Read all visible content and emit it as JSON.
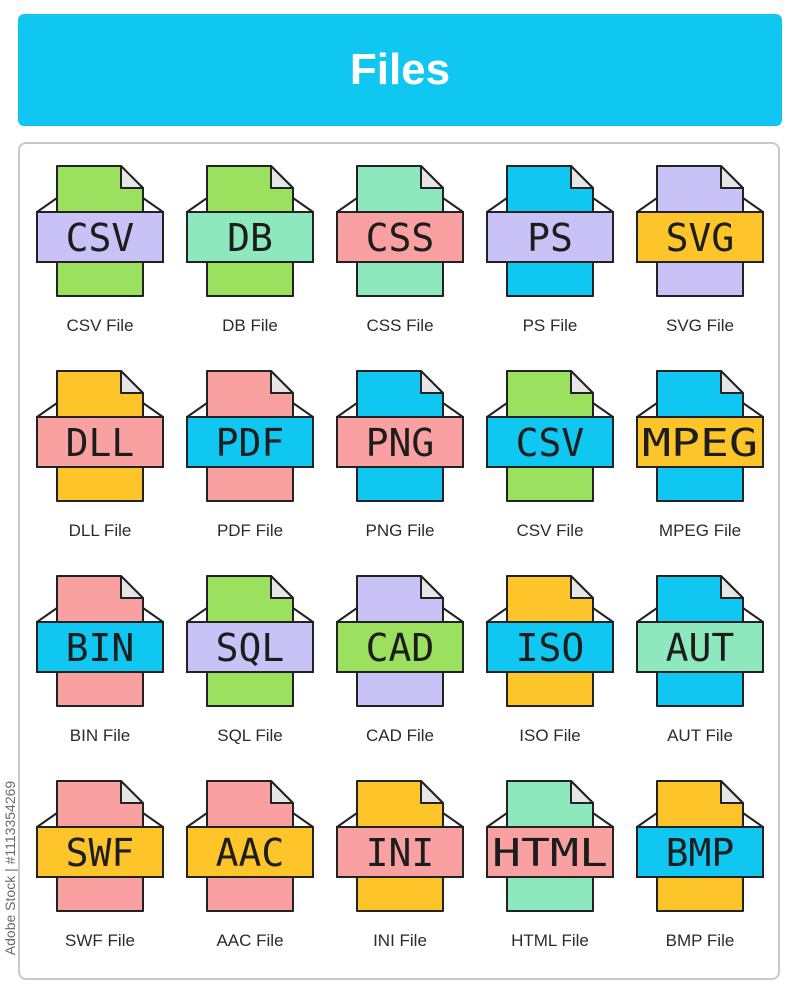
{
  "header": {
    "title": "Files"
  },
  "side_text": "Adobe Stock | #1113354269",
  "icons": [
    {
      "ext": "CSV",
      "label": "CSV File",
      "page_color": "#9be15f",
      "band_color": "#c9c2f7"
    },
    {
      "ext": "DB",
      "label": "DB File",
      "page_color": "#9be15f",
      "band_color": "#8ee8be"
    },
    {
      "ext": "CSS",
      "label": "CSS File",
      "page_color": "#8ee8be",
      "band_color": "#f9a0a0"
    },
    {
      "ext": "PS",
      "label": "PS File",
      "page_color": "#10c7f2",
      "band_color": "#c9c2f7"
    },
    {
      "ext": "SVG",
      "label": "SVG File",
      "page_color": "#c9c2f7",
      "band_color": "#fdc52a"
    },
    {
      "ext": "DLL",
      "label": "DLL File",
      "page_color": "#fdc52a",
      "band_color": "#f9a0a0"
    },
    {
      "ext": "PDF",
      "label": "PDF File",
      "page_color": "#f9a0a0",
      "band_color": "#10c7f2"
    },
    {
      "ext": "PNG",
      "label": "PNG File",
      "page_color": "#10c7f2",
      "band_color": "#f9a0a0"
    },
    {
      "ext": "CSV",
      "label": "CSV File",
      "page_color": "#9be15f",
      "band_color": "#10c7f2"
    },
    {
      "ext": "MPEG",
      "label": "MPEG File",
      "page_color": "#10c7f2",
      "band_color": "#fdc52a"
    },
    {
      "ext": "BIN",
      "label": "BIN File",
      "page_color": "#f9a0a0",
      "band_color": "#10c7f2"
    },
    {
      "ext": "SQL",
      "label": "SQL File",
      "page_color": "#9be15f",
      "band_color": "#c9c2f7"
    },
    {
      "ext": "CAD",
      "label": "CAD File",
      "page_color": "#c9c2f7",
      "band_color": "#9be15f"
    },
    {
      "ext": "ISO",
      "label": "ISO File",
      "page_color": "#fdc52a",
      "band_color": "#10c7f2"
    },
    {
      "ext": "AUT",
      "label": "AUT File",
      "page_color": "#10c7f2",
      "band_color": "#8ee8be"
    },
    {
      "ext": "SWF",
      "label": "SWF File",
      "page_color": "#f9a0a0",
      "band_color": "#fdc52a"
    },
    {
      "ext": "AAC",
      "label": "AAC File",
      "page_color": "#f9a0a0",
      "band_color": "#fdc52a"
    },
    {
      "ext": "INI",
      "label": "INI File",
      "page_color": "#fdc52a",
      "band_color": "#f9a0a0"
    },
    {
      "ext": "HTML",
      "label": "HTML File",
      "page_color": "#8ee8be",
      "band_color": "#f9a0a0"
    },
    {
      "ext": "BMP",
      "label": "BMP File",
      "page_color": "#fdc52a",
      "band_color": "#10c7f2"
    }
  ]
}
